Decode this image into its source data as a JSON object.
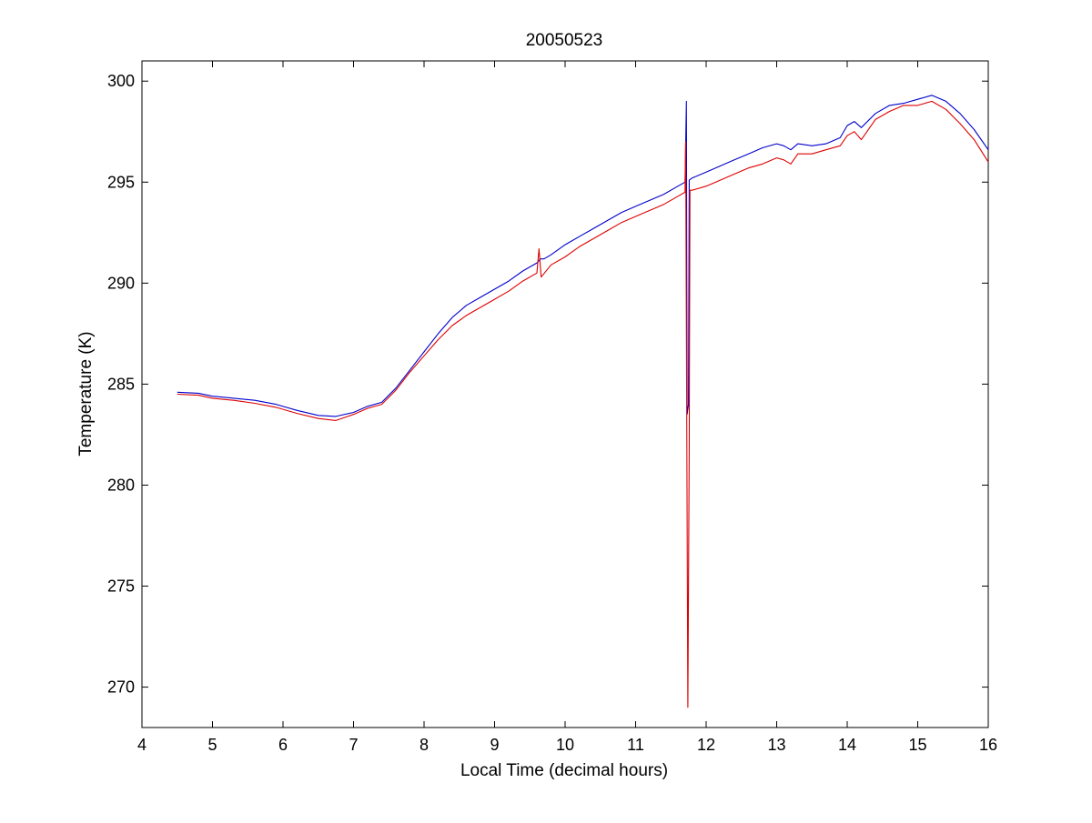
{
  "chart_data": {
    "type": "line",
    "title": "20050523",
    "xlabel": "Local Time (decimal hours)",
    "ylabel": "Temperature (K)",
    "xlim": [
      4,
      16
    ],
    "ylim": [
      268,
      301
    ],
    "xticks": [
      4,
      5,
      6,
      7,
      8,
      9,
      10,
      11,
      12,
      13,
      14,
      15,
      16
    ],
    "yticks": [
      270,
      275,
      280,
      285,
      290,
      295,
      300
    ],
    "grid": false,
    "legend": "none",
    "series": [
      {
        "color": "#0000cc",
        "points": [
          [
            4.5,
            284.6
          ],
          [
            4.8,
            284.55
          ],
          [
            5.0,
            284.4
          ],
          [
            5.3,
            284.3
          ],
          [
            5.6,
            284.2
          ],
          [
            5.9,
            284.0
          ],
          [
            6.2,
            283.7
          ],
          [
            6.5,
            283.45
          ],
          [
            6.75,
            283.4
          ],
          [
            7.0,
            283.6
          ],
          [
            7.2,
            283.9
          ],
          [
            7.4,
            284.1
          ],
          [
            7.6,
            284.8
          ],
          [
            7.8,
            285.7
          ],
          [
            8.0,
            286.6
          ],
          [
            8.2,
            287.5
          ],
          [
            8.4,
            288.3
          ],
          [
            8.6,
            288.9
          ],
          [
            8.8,
            289.3
          ],
          [
            9.0,
            289.7
          ],
          [
            9.2,
            290.1
          ],
          [
            9.4,
            290.6
          ],
          [
            9.6,
            291.0
          ],
          [
            9.65,
            291.2
          ],
          [
            9.7,
            291.2
          ],
          [
            9.8,
            291.4
          ],
          [
            10.0,
            291.9
          ],
          [
            10.2,
            292.3
          ],
          [
            10.4,
            292.7
          ],
          [
            10.6,
            293.1
          ],
          [
            10.8,
            293.5
          ],
          [
            11.0,
            293.8
          ],
          [
            11.2,
            294.1
          ],
          [
            11.4,
            294.4
          ],
          [
            11.6,
            294.8
          ],
          [
            11.7,
            295.0
          ],
          [
            11.72,
            299.0
          ],
          [
            11.73,
            283.5
          ],
          [
            11.75,
            284.0
          ],
          [
            11.76,
            295.1
          ],
          [
            11.8,
            295.2
          ],
          [
            12.0,
            295.5
          ],
          [
            12.2,
            295.8
          ],
          [
            12.4,
            296.1
          ],
          [
            12.6,
            296.4
          ],
          [
            12.8,
            296.7
          ],
          [
            13.0,
            296.9
          ],
          [
            13.1,
            296.8
          ],
          [
            13.2,
            296.6
          ],
          [
            13.3,
            296.9
          ],
          [
            13.5,
            296.8
          ],
          [
            13.7,
            296.9
          ],
          [
            13.9,
            297.2
          ],
          [
            14.0,
            297.8
          ],
          [
            14.1,
            298.0
          ],
          [
            14.2,
            297.7
          ],
          [
            14.4,
            298.4
          ],
          [
            14.6,
            298.8
          ],
          [
            14.8,
            298.9
          ],
          [
            15.0,
            299.1
          ],
          [
            15.2,
            299.3
          ],
          [
            15.4,
            299.0
          ],
          [
            15.6,
            298.4
          ],
          [
            15.8,
            297.6
          ],
          [
            16.0,
            296.6
          ]
        ]
      },
      {
        "color": "#dd0000",
        "points": [
          [
            4.5,
            284.5
          ],
          [
            4.8,
            284.45
          ],
          [
            5.0,
            284.3
          ],
          [
            5.3,
            284.2
          ],
          [
            5.6,
            284.05
          ],
          [
            5.9,
            283.85
          ],
          [
            6.2,
            283.55
          ],
          [
            6.5,
            283.3
          ],
          [
            6.75,
            283.2
          ],
          [
            7.0,
            283.5
          ],
          [
            7.2,
            283.8
          ],
          [
            7.4,
            284.0
          ],
          [
            7.6,
            284.7
          ],
          [
            7.8,
            285.6
          ],
          [
            8.0,
            286.4
          ],
          [
            8.2,
            287.2
          ],
          [
            8.4,
            287.9
          ],
          [
            8.6,
            288.4
          ],
          [
            8.8,
            288.8
          ],
          [
            9.0,
            289.2
          ],
          [
            9.2,
            289.6
          ],
          [
            9.4,
            290.1
          ],
          [
            9.6,
            290.5
          ],
          [
            9.63,
            291.7
          ],
          [
            9.66,
            290.3
          ],
          [
            9.8,
            290.9
          ],
          [
            10.0,
            291.3
          ],
          [
            10.2,
            291.8
          ],
          [
            10.4,
            292.2
          ],
          [
            10.6,
            292.6
          ],
          [
            10.8,
            293.0
          ],
          [
            11.0,
            293.3
          ],
          [
            11.2,
            293.6
          ],
          [
            11.4,
            293.9
          ],
          [
            11.6,
            294.3
          ],
          [
            11.7,
            294.5
          ],
          [
            11.71,
            297.0
          ],
          [
            11.74,
            269.0
          ],
          [
            11.76,
            281.9
          ],
          [
            11.77,
            294.6
          ],
          [
            11.8,
            294.6
          ],
          [
            12.0,
            294.8
          ],
          [
            12.2,
            295.1
          ],
          [
            12.4,
            295.4
          ],
          [
            12.6,
            295.7
          ],
          [
            12.8,
            295.9
          ],
          [
            13.0,
            296.2
          ],
          [
            13.1,
            296.1
          ],
          [
            13.2,
            295.9
          ],
          [
            13.3,
            296.4
          ],
          [
            13.5,
            296.4
          ],
          [
            13.7,
            296.6
          ],
          [
            13.9,
            296.8
          ],
          [
            14.0,
            297.3
          ],
          [
            14.1,
            297.5
          ],
          [
            14.2,
            297.1
          ],
          [
            14.4,
            298.1
          ],
          [
            14.6,
            298.5
          ],
          [
            14.8,
            298.8
          ],
          [
            15.0,
            298.8
          ],
          [
            15.2,
            299.0
          ],
          [
            15.4,
            298.6
          ],
          [
            15.6,
            297.9
          ],
          [
            15.8,
            297.1
          ],
          [
            16.0,
            296.0
          ]
        ]
      }
    ]
  }
}
